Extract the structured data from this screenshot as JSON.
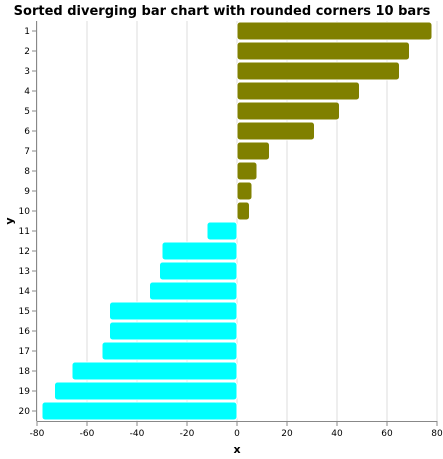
{
  "chart_data": {
    "type": "bar",
    "orientation": "horizontal",
    "title": "Sorted diverging bar chart with rounded corners 10 bars",
    "xlabel": "x",
    "ylabel": "y",
    "xlim": [
      -80,
      80
    ],
    "xticks": [
      -80,
      -60,
      -40,
      -20,
      0,
      20,
      40,
      60,
      80
    ],
    "grid": true,
    "categories": [
      "1",
      "2",
      "3",
      "4",
      "5",
      "6",
      "7",
      "8",
      "9",
      "10",
      "11",
      "12",
      "13",
      "14",
      "15",
      "16",
      "17",
      "18",
      "19",
      "20"
    ],
    "values": [
      78,
      69,
      65,
      49,
      41,
      31,
      13,
      8,
      6,
      5,
      -12,
      -30,
      -31,
      -35,
      -51,
      -51,
      -54,
      -66,
      -73,
      -78
    ],
    "colors": {
      "positive": "#808000",
      "negative": "#00ffff"
    }
  }
}
